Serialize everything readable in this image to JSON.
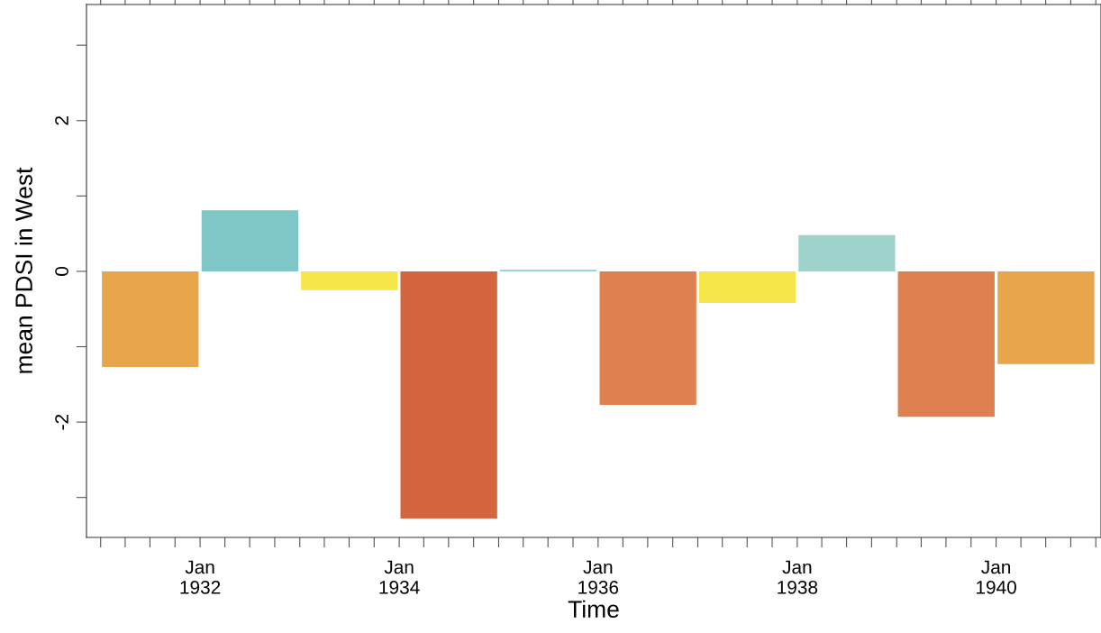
{
  "chart_data": {
    "type": "bar",
    "xlabel": "Time",
    "ylabel": "mean PDSI in West",
    "x": [
      "1931-07-02",
      "1932-07-02",
      "1933-07-02",
      "1934-07-02",
      "1935-07-02",
      "1936-07-02",
      "1937-07-02",
      "1938-07-02",
      "1939-07-02",
      "1940-07-02"
    ],
    "values": [
      -1.27,
      0.81,
      -0.25,
      -3.28,
      0.02,
      -1.77,
      -0.42,
      0.48,
      -1.93,
      -1.23
    ],
    "colors": [
      "#e8a54c",
      "#7fc6c6",
      "#f5e64a",
      "#d4653f",
      "#8fcfcf",
      "#de8050",
      "#f5e64a",
      "#a0d2cc",
      "#de8050",
      "#e8a54c"
    ],
    "xlim": [
      "1930-11-10",
      "1941-01-20"
    ],
    "xticks": [
      {
        "value": "1931-01",
        "label": null
      },
      {
        "value": "1931-04",
        "label": null
      },
      {
        "value": "1931-07",
        "label": null
      },
      {
        "value": "1931-10",
        "label": null
      },
      {
        "value": "1932-01",
        "label": "Jan\n1932"
      },
      {
        "value": "1932-04",
        "label": null
      },
      {
        "value": "1932-07",
        "label": null
      },
      {
        "value": "1932-10",
        "label": null
      },
      {
        "value": "1933-01",
        "label": null
      },
      {
        "value": "1933-04",
        "label": null
      },
      {
        "value": "1933-07",
        "label": null
      },
      {
        "value": "1933-10",
        "label": null
      },
      {
        "value": "1934-01",
        "label": "Jan\n1934"
      },
      {
        "value": "1934-04",
        "label": null
      },
      {
        "value": "1934-07",
        "label": null
      },
      {
        "value": "1934-10",
        "label": null
      },
      {
        "value": "1935-01",
        "label": null
      },
      {
        "value": "1935-04",
        "label": null
      },
      {
        "value": "1935-07",
        "label": null
      },
      {
        "value": "1935-10",
        "label": null
      },
      {
        "value": "1936-01",
        "label": "Jan\n1936"
      },
      {
        "value": "1936-04",
        "label": null
      },
      {
        "value": "1936-07",
        "label": null
      },
      {
        "value": "1936-10",
        "label": null
      },
      {
        "value": "1937-01",
        "label": null
      },
      {
        "value": "1937-04",
        "label": null
      },
      {
        "value": "1937-07",
        "label": null
      },
      {
        "value": "1937-10",
        "label": null
      },
      {
        "value": "1938-01",
        "label": "Jan\n1938"
      },
      {
        "value": "1938-04",
        "label": null
      },
      {
        "value": "1938-07",
        "label": null
      },
      {
        "value": "1938-10",
        "label": null
      },
      {
        "value": "1939-01",
        "label": null
      },
      {
        "value": "1939-04",
        "label": null
      },
      {
        "value": "1939-07",
        "label": null
      },
      {
        "value": "1939-10",
        "label": null
      },
      {
        "value": "1940-01",
        "label": "Jan\n1940"
      },
      {
        "value": "1940-04",
        "label": null
      },
      {
        "value": "1940-07",
        "label": null
      },
      {
        "value": "1940-10",
        "label": null
      },
      {
        "value": "1941-01",
        "label": null
      }
    ],
    "ylim": [
      -3.53,
      3.54
    ],
    "yticks": [
      {
        "value": -3,
        "label": null
      },
      -2,
      {
        "value": -1,
        "label": null
      },
      0,
      {
        "value": 1,
        "label": null
      },
      2,
      {
        "value": 3,
        "label": null
      }
    ],
    "grid": false,
    "legend": false
  }
}
